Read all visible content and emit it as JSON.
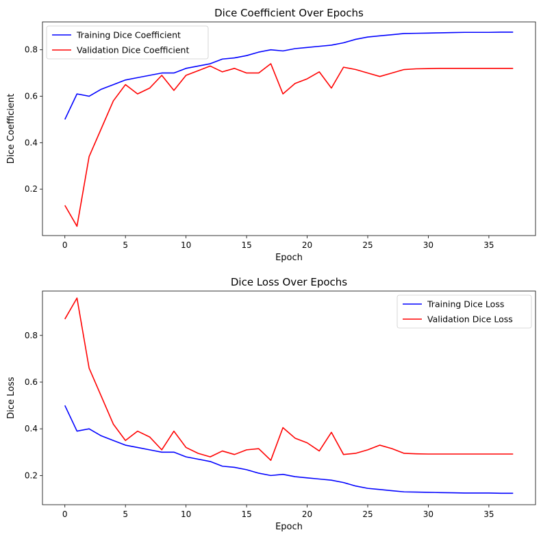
{
  "chart_data": [
    {
      "type": "line",
      "title": "Dice Coefficient Over Epochs",
      "xlabel": "Epoch",
      "ylabel": "Dice Coefficient",
      "xlim": [
        -1.85,
        38.85
      ],
      "ylim": [
        0.0,
        0.92
      ],
      "xticks": [
        0,
        5,
        10,
        15,
        20,
        25,
        30,
        35
      ],
      "yticks": [
        0.2,
        0.4,
        0.6,
        0.8
      ],
      "tick_labels_x": [
        "0",
        "5",
        "10",
        "15",
        "20",
        "25",
        "30",
        "35"
      ],
      "tick_labels_y": [
        "0.2",
        "0.4",
        "0.6",
        "0.8"
      ],
      "grid": false,
      "legend_position": "upper-left",
      "x": [
        0,
        1,
        2,
        3,
        4,
        5,
        6,
        7,
        8,
        9,
        10,
        11,
        12,
        13,
        14,
        15,
        16,
        17,
        18,
        19,
        20,
        21,
        22,
        23,
        24,
        25,
        26,
        27,
        28,
        29,
        30,
        31,
        32,
        33,
        34,
        35,
        36,
        37
      ],
      "series": [
        {
          "name": "Training Dice Coefficient",
          "color": "#0000ff",
          "values": [
            0.5,
            0.61,
            0.6,
            0.63,
            0.65,
            0.67,
            0.68,
            0.69,
            0.7,
            0.7,
            0.72,
            0.73,
            0.74,
            0.76,
            0.765,
            0.775,
            0.79,
            0.8,
            0.795,
            0.805,
            0.81,
            0.815,
            0.82,
            0.83,
            0.845,
            0.855,
            0.86,
            0.865,
            0.87,
            0.871,
            0.872,
            0.873,
            0.874,
            0.875,
            0.875,
            0.875,
            0.876,
            0.876
          ]
        },
        {
          "name": "Validation Dice Coefficient",
          "color": "#ff0000",
          "values": [
            0.13,
            0.04,
            0.34,
            0.46,
            0.58,
            0.65,
            0.61,
            0.635,
            0.69,
            0.625,
            0.69,
            0.71,
            0.73,
            0.705,
            0.72,
            0.7,
            0.7,
            0.74,
            0.61,
            0.655,
            0.675,
            0.705,
            0.635,
            0.725,
            0.715,
            0.7,
            0.685,
            0.7,
            0.715,
            0.718,
            0.719,
            0.72,
            0.72,
            0.72,
            0.72,
            0.72,
            0.72,
            0.72
          ]
        }
      ]
    },
    {
      "type": "line",
      "title": "Dice Loss Over Epochs",
      "xlabel": "Epoch",
      "ylabel": "Dice Loss",
      "xlim": [
        -1.85,
        38.85
      ],
      "ylim": [
        0.075,
        0.99
      ],
      "xticks": [
        0,
        5,
        10,
        15,
        20,
        25,
        30,
        35
      ],
      "yticks": [
        0.2,
        0.4,
        0.6,
        0.8
      ],
      "tick_labels_x": [
        "0",
        "5",
        "10",
        "15",
        "20",
        "25",
        "30",
        "35"
      ],
      "tick_labels_y": [
        "0.2",
        "0.4",
        "0.6",
        "0.8"
      ],
      "grid": false,
      "legend_position": "upper-right",
      "x": [
        0,
        1,
        2,
        3,
        4,
        5,
        6,
        7,
        8,
        9,
        10,
        11,
        12,
        13,
        14,
        15,
        16,
        17,
        18,
        19,
        20,
        21,
        22,
        23,
        24,
        25,
        26,
        27,
        28,
        29,
        30,
        31,
        32,
        33,
        34,
        35,
        36,
        37
      ],
      "series": [
        {
          "name": "Training Dice Loss",
          "color": "#0000ff",
          "values": [
            0.5,
            0.39,
            0.4,
            0.37,
            0.35,
            0.33,
            0.32,
            0.31,
            0.3,
            0.3,
            0.28,
            0.27,
            0.26,
            0.24,
            0.235,
            0.225,
            0.21,
            0.2,
            0.205,
            0.195,
            0.19,
            0.185,
            0.18,
            0.17,
            0.155,
            0.145,
            0.14,
            0.135,
            0.13,
            0.129,
            0.128,
            0.127,
            0.126,
            0.125,
            0.125,
            0.125,
            0.124,
            0.124
          ]
        },
        {
          "name": "Validation Dice Loss",
          "color": "#ff0000",
          "values": [
            0.87,
            0.96,
            0.66,
            0.54,
            0.42,
            0.35,
            0.39,
            0.365,
            0.31,
            0.39,
            0.32,
            0.295,
            0.28,
            0.305,
            0.29,
            0.31,
            0.315,
            0.265,
            0.405,
            0.36,
            0.34,
            0.305,
            0.385,
            0.29,
            0.295,
            0.31,
            0.33,
            0.315,
            0.295,
            0.293,
            0.292,
            0.292,
            0.292,
            0.292,
            0.292,
            0.292,
            0.292,
            0.292
          ]
        }
      ]
    }
  ]
}
